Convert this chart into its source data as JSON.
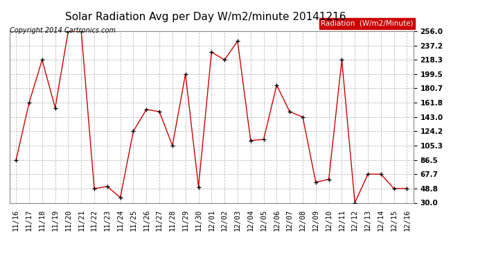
{
  "title": "Solar Radiation Avg per Day W/m2/minute 20141216",
  "copyright": "Copyright 2014 Cartronics.com",
  "legend_label": "Radiation  (W/m2/Minute)",
  "dates": [
    "11/16",
    "11/17",
    "11/18",
    "11/19",
    "11/20",
    "11/21",
    "11/22",
    "11/23",
    "11/24",
    "11/25",
    "11/26",
    "11/27",
    "11/28",
    "11/29",
    "11/30",
    "12/01",
    "12/02",
    "12/03",
    "12/04",
    "12/05",
    "12/06",
    "12/07",
    "12/08",
    "12/09",
    "12/10",
    "12/11",
    "12/12",
    "12/13",
    "12/14",
    "12/15",
    "12/16"
  ],
  "values": [
    86.5,
    161.8,
    218.3,
    155.0,
    256.0,
    256.0,
    48.8,
    51.5,
    37.0,
    124.2,
    153.0,
    150.0,
    105.3,
    199.5,
    51.0,
    228.5,
    218.3,
    243.0,
    112.0,
    113.5,
    185.0,
    150.0,
    143.0,
    57.0,
    61.0,
    218.3,
    30.0,
    67.7,
    67.7,
    48.8,
    48.8
  ],
  "y_ticks": [
    30.0,
    48.8,
    67.7,
    86.5,
    105.3,
    124.2,
    143.0,
    161.8,
    180.7,
    199.5,
    218.3,
    237.2,
    256.0
  ],
  "ylim": [
    30.0,
    256.0
  ],
  "line_color": "#cc0000",
  "marker_color": "#000000",
  "background_color": "#ffffff",
  "plot_bg_color": "#ffffff",
  "grid_color": "#bbbbbb",
  "title_fontsize": 11,
  "copyright_fontsize": 7,
  "tick_fontsize": 7.5,
  "legend_bg_color": "#cc0000",
  "legend_text_color": "#ffffff",
  "legend_fontsize": 7.5
}
